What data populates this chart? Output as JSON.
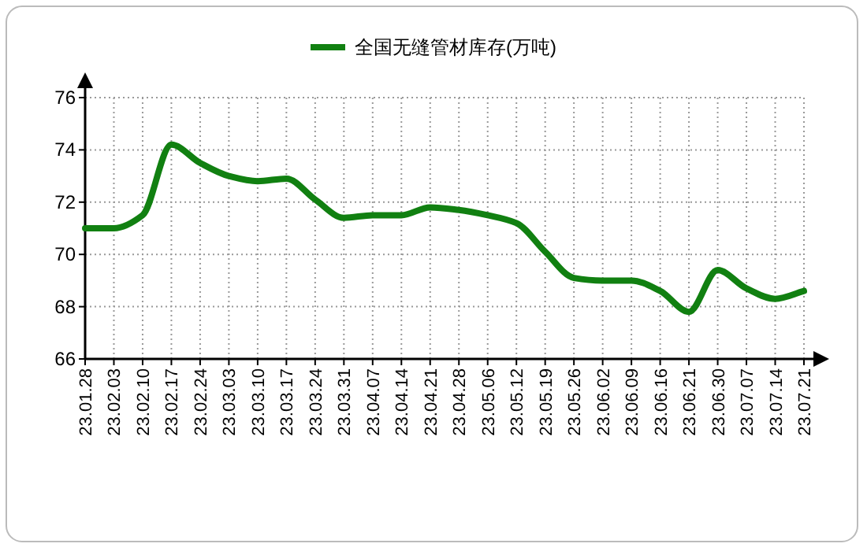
{
  "chart_data": {
    "type": "line",
    "categories": [
      "23.01.28",
      "23.02.03",
      "23.02.10",
      "23.02.17",
      "23.02.24",
      "23.03.03",
      "23.03.10",
      "23.03.17",
      "23.03.24",
      "23.03.31",
      "23.04.07",
      "23.04.14",
      "23.04.21",
      "23.04.28",
      "23.05.06",
      "23.05.12",
      "23.05.19",
      "23.05.26",
      "23.06.02",
      "23.06.09",
      "23.06.16",
      "23.06.21",
      "23.06.30",
      "23.07.07",
      "23.07.14",
      "23.07.21"
    ],
    "series": [
      {
        "name": "全国无缝管材库存(万吨)",
        "color": "#118011",
        "values": [
          71.0,
          71.0,
          71.5,
          74.2,
          73.5,
          73.0,
          72.8,
          72.9,
          72.1,
          71.4,
          71.5,
          71.5,
          71.8,
          71.7,
          71.5,
          71.2,
          70.1,
          69.1,
          69.0,
          69.0,
          68.6,
          67.8,
          69.4,
          68.7,
          68.3,
          68.6
        ]
      }
    ],
    "ylim": [
      66,
      76
    ],
    "yticks": [
      66,
      68,
      70,
      72,
      74,
      76
    ],
    "grid": true,
    "legend": "top"
  }
}
